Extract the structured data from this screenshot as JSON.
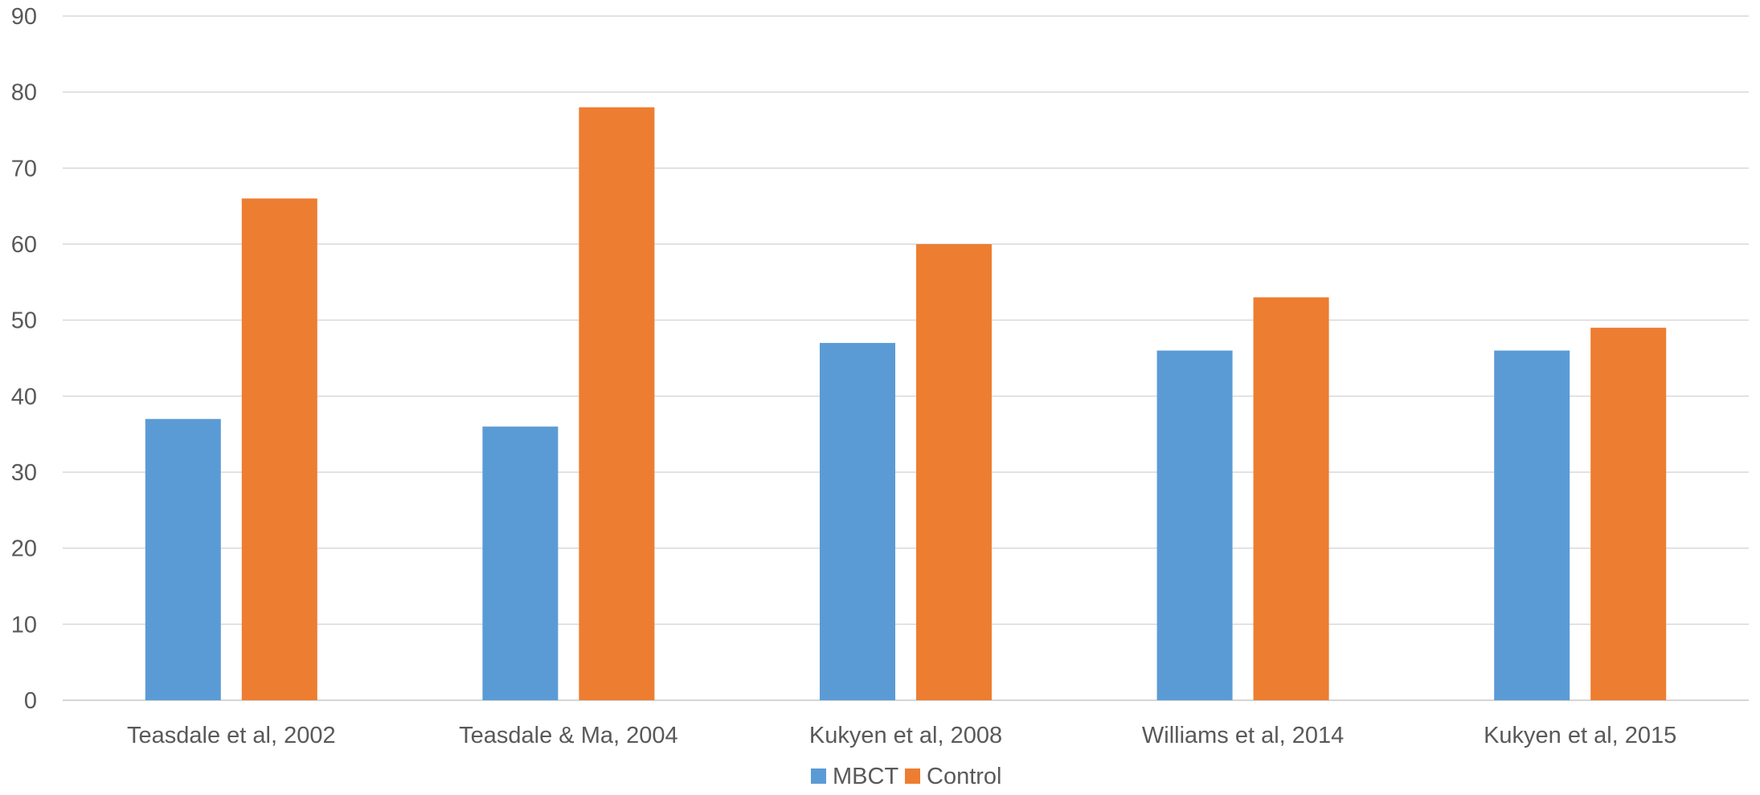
{
  "chart_data": {
    "type": "bar",
    "categories": [
      "Teasdale et al, 2002",
      "Teasdale & Ma, 2004",
      "Kukyen et al, 2008",
      "Williams et al, 2014",
      "Kukyen et al, 2015"
    ],
    "series": [
      {
        "name": "MBCT",
        "color": "#5B9BD5",
        "values": [
          37,
          36,
          47,
          46,
          46
        ]
      },
      {
        "name": "Control",
        "color": "#ED7D31",
        "values": [
          66,
          78,
          60,
          53,
          49
        ]
      }
    ],
    "title": "",
    "xlabel": "",
    "ylabel": "",
    "ylim": [
      0,
      90
    ],
    "yticks": [
      0,
      10,
      20,
      30,
      40,
      50,
      60,
      70,
      80,
      90
    ],
    "grid": true,
    "legend_position": "bottom"
  }
}
